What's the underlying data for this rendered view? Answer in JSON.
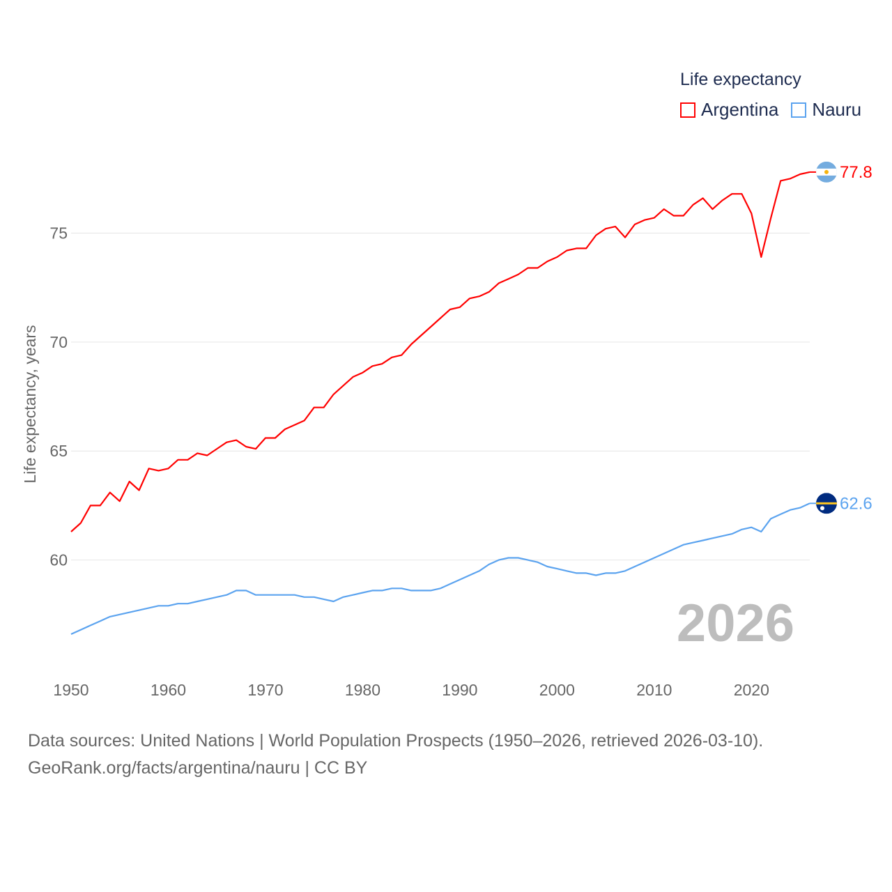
{
  "chart_data": {
    "type": "line",
    "title": "Life expectancy",
    "xlabel": "",
    "ylabel": "Life expectancy, years",
    "xlim": [
      1950,
      2026
    ],
    "ylim": [
      55,
      79.3
    ],
    "x_ticks": [
      1950,
      1960,
      1970,
      1980,
      1990,
      2000,
      2010,
      2020
    ],
    "y_ticks": [
      60,
      65,
      70,
      75
    ],
    "grid": "horizontal",
    "legend_position": "top-right",
    "year_watermark": "2026",
    "x": [
      1950,
      1951,
      1952,
      1953,
      1954,
      1955,
      1956,
      1957,
      1958,
      1959,
      1960,
      1961,
      1962,
      1963,
      1964,
      1965,
      1966,
      1967,
      1968,
      1969,
      1970,
      1971,
      1972,
      1973,
      1974,
      1975,
      1976,
      1977,
      1978,
      1979,
      1980,
      1981,
      1982,
      1983,
      1984,
      1985,
      1986,
      1987,
      1988,
      1989,
      1990,
      1991,
      1992,
      1993,
      1994,
      1995,
      1996,
      1997,
      1998,
      1999,
      2000,
      2001,
      2002,
      2003,
      2004,
      2005,
      2006,
      2007,
      2008,
      2009,
      2010,
      2011,
      2012,
      2013,
      2014,
      2015,
      2016,
      2017,
      2018,
      2019,
      2020,
      2021,
      2022,
      2023,
      2024,
      2025,
      2026
    ],
    "series": [
      {
        "name": "Argentina",
        "color": "#ff0000",
        "end_label": "77.8",
        "flag": "argentina-flag",
        "values": [
          61.3,
          61.7,
          62.5,
          62.5,
          63.1,
          62.7,
          63.6,
          63.2,
          64.2,
          64.1,
          64.2,
          64.6,
          64.6,
          64.9,
          64.8,
          65.1,
          65.4,
          65.5,
          65.2,
          65.1,
          65.6,
          65.6,
          66.0,
          66.2,
          66.4,
          67.0,
          67.0,
          67.6,
          68.0,
          68.4,
          68.6,
          68.9,
          69.0,
          69.3,
          69.4,
          69.9,
          70.3,
          70.7,
          71.1,
          71.5,
          71.6,
          72.0,
          72.1,
          72.3,
          72.7,
          72.9,
          73.1,
          73.4,
          73.4,
          73.7,
          73.9,
          74.2,
          74.3,
          74.3,
          74.9,
          75.2,
          75.3,
          74.8,
          75.4,
          75.6,
          75.7,
          76.1,
          75.8,
          75.8,
          76.3,
          76.6,
          76.1,
          76.5,
          76.8,
          76.8,
          75.9,
          73.9,
          75.7,
          77.4,
          77.5,
          77.7,
          77.8
        ]
      },
      {
        "name": "Nauru",
        "color": "#5ba3ef",
        "end_label": "62.6",
        "flag": "nauru-flag",
        "values": [
          56.6,
          56.8,
          57.0,
          57.2,
          57.4,
          57.5,
          57.6,
          57.7,
          57.8,
          57.9,
          57.9,
          58.0,
          58.0,
          58.1,
          58.2,
          58.3,
          58.4,
          58.6,
          58.6,
          58.4,
          58.4,
          58.4,
          58.4,
          58.4,
          58.3,
          58.3,
          58.2,
          58.1,
          58.3,
          58.4,
          58.5,
          58.6,
          58.6,
          58.7,
          58.7,
          58.6,
          58.6,
          58.6,
          58.7,
          58.9,
          59.1,
          59.3,
          59.5,
          59.8,
          60.0,
          60.1,
          60.1,
          60.0,
          59.9,
          59.7,
          59.6,
          59.5,
          59.4,
          59.4,
          59.3,
          59.4,
          59.4,
          59.5,
          59.7,
          59.9,
          60.1,
          60.3,
          60.5,
          60.7,
          60.8,
          60.9,
          61.0,
          61.1,
          61.2,
          61.4,
          61.5,
          61.3,
          61.9,
          62.1,
          62.3,
          62.4,
          62.6
        ]
      }
    ]
  },
  "footer": {
    "line1": "Data sources: United Nations | World Population Prospects (1950–2026, retrieved 2026-03-10).",
    "line2": "GeoRank.org/facts/argentina/nauru | CC BY"
  }
}
